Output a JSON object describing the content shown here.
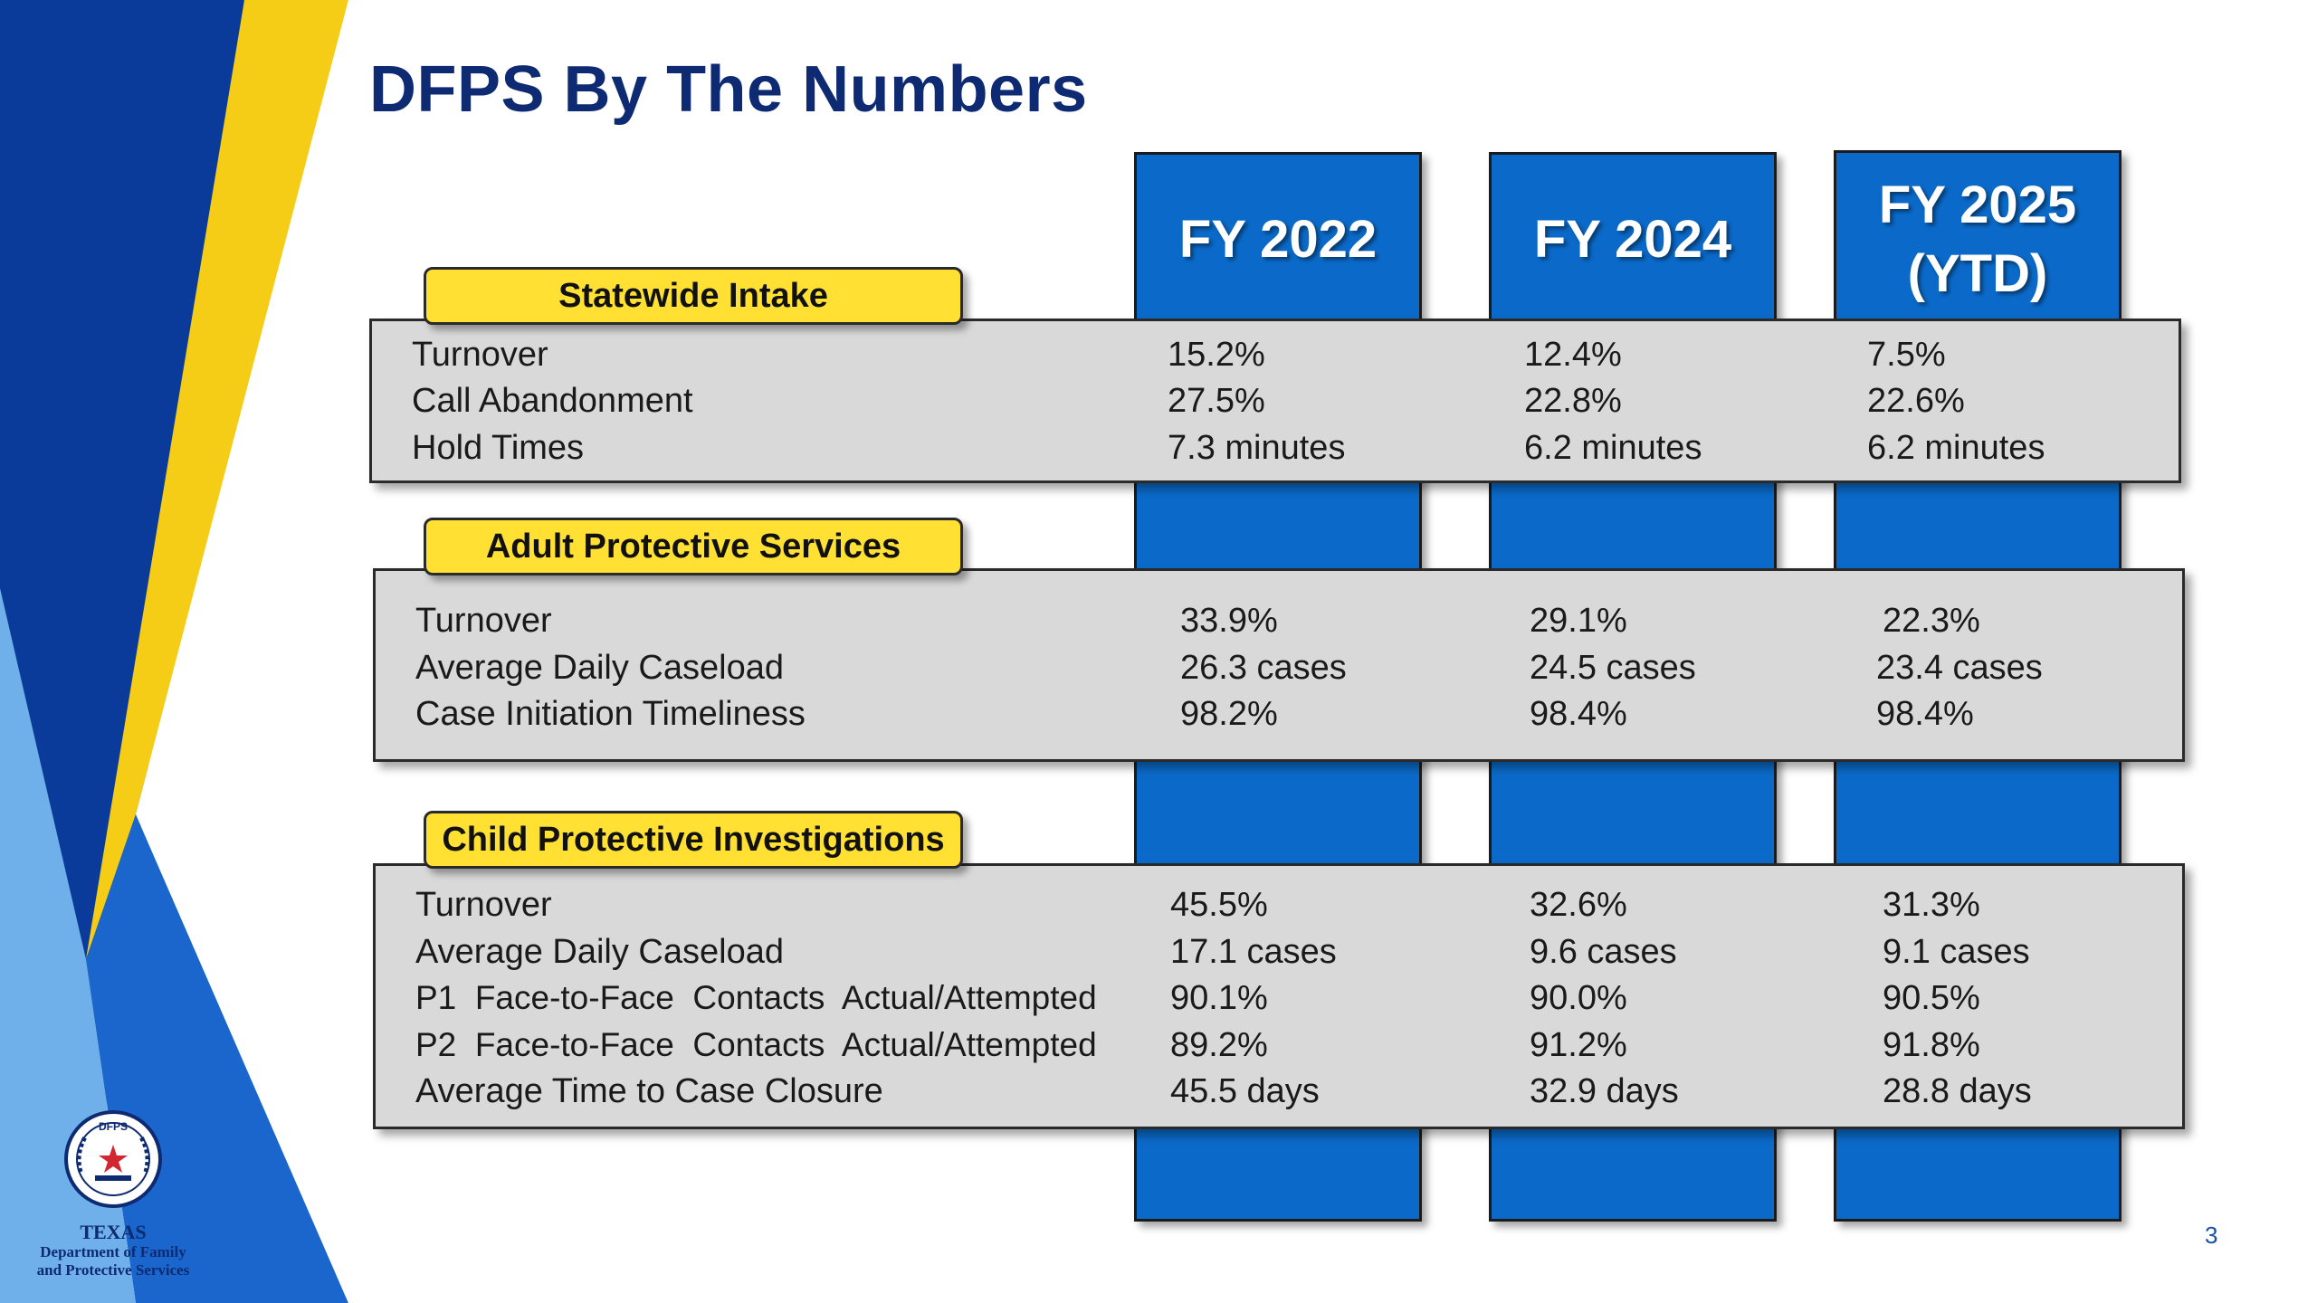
{
  "title": "DFPS By The Numbers",
  "columns": [
    {
      "line1": "FY 2022",
      "line2": ""
    },
    {
      "line1": "FY 2024",
      "line2": ""
    },
    {
      "line1": "FY 2025",
      "line2": "(YTD)"
    }
  ],
  "sections": [
    {
      "name": "Statewide Intake",
      "rows": [
        {
          "label": "Turnover",
          "values": [
            "15.2%",
            "12.4%",
            "7.5%"
          ]
        },
        {
          "label": "Call Abandonment",
          "values": [
            "27.5%",
            "22.8%",
            "22.6%"
          ]
        },
        {
          "label": "Hold Times",
          "values": [
            "7.3 minutes",
            "6.2 minutes",
            "6.2 minutes"
          ]
        }
      ]
    },
    {
      "name": "Adult Protective Services",
      "rows": [
        {
          "label": "Turnover",
          "values": [
            "33.9%",
            "29.1%",
            "22.3%"
          ]
        },
        {
          "label": "Average Daily Caseload",
          "values": [
            "26.3 cases",
            "24.5 cases",
            "23.4 cases"
          ]
        },
        {
          "label": "Case Initiation Timeliness",
          "values": [
            "98.2%",
            "98.4%",
            "98.4%"
          ]
        }
      ]
    },
    {
      "name": "Child Protective Investigations",
      "rows": [
        {
          "label": "Turnover",
          "values": [
            "45.5%",
            "32.6%",
            "31.3%"
          ]
        },
        {
          "label": "Average Daily Caseload",
          "values": [
            "17.1 cases",
            "9.6 cases",
            "9.1 cases"
          ]
        },
        {
          "label": "P1  Face-to-Face  Contacts  Actual/Attempted",
          "values": [
            "90.1%",
            "90.0%",
            "90.5%"
          ]
        },
        {
          "label": "P2  Face-to-Face  Contacts  Actual/Attempted",
          "values": [
            "89.2%",
            "91.2%",
            "91.8%"
          ]
        },
        {
          "label": "Average Time to Case Closure",
          "values": [
            "45.5 days",
            "32.9 days",
            "28.8 days"
          ]
        }
      ]
    }
  ],
  "logo": {
    "emblem_text": "DFPS",
    "line1": "TEXAS",
    "line2": "Department of Family",
    "line3": "and Protective Services"
  },
  "page_number": "3",
  "colors": {
    "title": "#0d2a72",
    "column_blue": "#0b6ac9",
    "panel_gray": "#d9d9d9",
    "tag_yellow": "#ffe033",
    "stripe_navy": "#0a3a9a",
    "stripe_yellow": "#f5cc16",
    "stripe_light": "#6fb0ea"
  }
}
